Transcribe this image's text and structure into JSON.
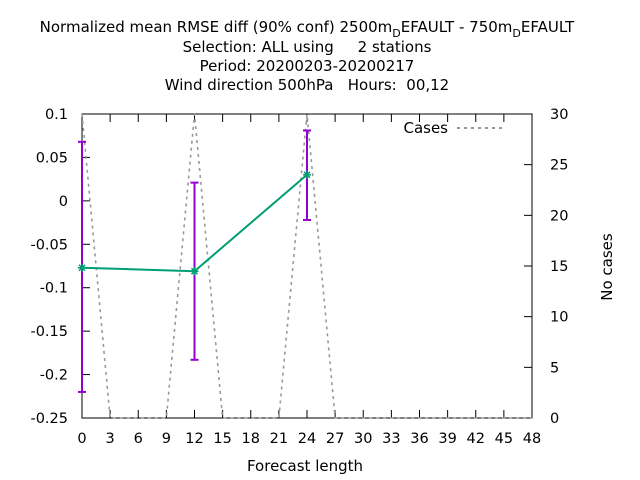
{
  "chart_data": {
    "type": "line",
    "title": {
      "line1": {
        "prefix": "Normalized mean RMSE diff (90% conf) 2500m",
        "sub1": "D",
        "mid": "EFAULT - 750m",
        "sub2": "D",
        "suffix": "EFAULT"
      },
      "line2": "Selection: ALL using     2 stations",
      "line3": "Period: 20200203-20200217",
      "line4": "Wind direction 500hPa   Hours:  00,12"
    },
    "xlabel": "Forecast length",
    "ylabel": "",
    "y2label": "No cases",
    "xlim": [
      0,
      48
    ],
    "ylim": [
      -0.25,
      0.1
    ],
    "y2lim": [
      0,
      30
    ],
    "xticks": [
      "0",
      "3",
      "6",
      "9",
      "12",
      "15",
      "18",
      "21",
      "24",
      "27",
      "30",
      "33",
      "36",
      "39",
      "42",
      "45",
      "48"
    ],
    "yticks": [
      "0.1",
      "0.05",
      "0",
      "-0.05",
      "-0.1",
      "-0.15",
      "-0.2",
      "-0.25"
    ],
    "y2ticks": [
      "30",
      "25",
      "20",
      "15",
      "10",
      "5",
      "0"
    ],
    "legend": {
      "label": "Cases",
      "position": "top-right"
    },
    "series": [
      {
        "name": "",
        "color": "#009e73",
        "x": [
          0,
          12,
          24
        ],
        "y": [
          -0.077,
          -0.081,
          0.03
        ],
        "ci_low": [
          -0.22,
          -0.183,
          -0.022
        ],
        "ci_high": [
          0.068,
          0.021,
          0.081
        ],
        "ci_color": "#9400d3"
      },
      {
        "name": "Cases",
        "axis": "y2",
        "color": "#999999",
        "x": [
          0,
          3,
          9,
          12,
          15,
          21,
          24,
          27,
          48
        ],
        "y": [
          30,
          0,
          0,
          30,
          0,
          0,
          30,
          0,
          0
        ]
      }
    ]
  }
}
